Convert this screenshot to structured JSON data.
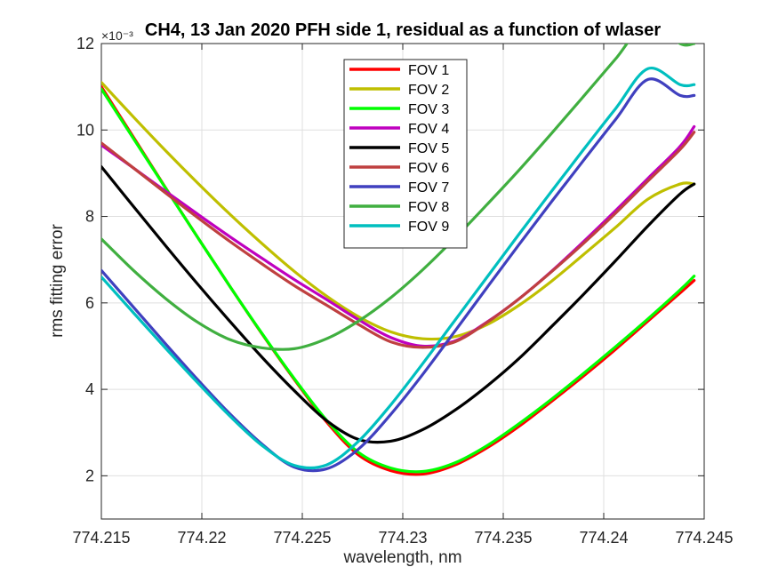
{
  "chart_data": {
    "type": "line",
    "title": "CH4, 13 Jan 2020 PFH side 1, residual as a function of wlaser",
    "xlabel": "wavelength, nm",
    "ylabel": "rms fitting error",
    "y_exponent": "×10⁻³",
    "xlim": [
      774.215,
      774.245
    ],
    "ylim": [
      1,
      12
    ],
    "xticks": [
      "774.215",
      "774.22",
      "774.225",
      "774.23",
      "774.235",
      "774.24",
      "774.245"
    ],
    "yticks": [
      "2",
      "4",
      "6",
      "8",
      "10",
      "12"
    ],
    "grid": true,
    "legend_position": "top-center",
    "x": [
      774.215,
      774.2166,
      774.2182,
      774.2198,
      774.2214,
      774.223,
      774.2246,
      774.2262,
      774.2278,
      774.2294,
      774.231,
      774.2326,
      774.2342,
      774.2358,
      774.2374,
      774.239,
      774.2406,
      774.2422,
      774.2438,
      774.2445
    ],
    "series": [
      {
        "name": "FOV 1",
        "color": "#ff0000",
        "values": [
          11.0,
          9.83,
          8.66,
          7.51,
          6.38,
          5.28,
          4.23,
          3.25,
          2.48,
          2.12,
          2.04,
          2.25,
          2.65,
          3.15,
          3.72,
          4.31,
          4.93,
          5.58,
          6.23,
          6.52
        ]
      },
      {
        "name": "FOV 2",
        "color": "#bfbf00",
        "values": [
          11.1,
          10.3,
          9.52,
          8.77,
          8.05,
          7.37,
          6.73,
          6.16,
          5.68,
          5.33,
          5.17,
          5.22,
          5.5,
          5.95,
          6.5,
          7.12,
          7.75,
          8.4,
          8.75,
          8.75
        ]
      },
      {
        "name": "FOV 3",
        "color": "#00ff00",
        "values": [
          10.95,
          9.8,
          8.65,
          7.51,
          6.38,
          5.29,
          4.25,
          3.29,
          2.54,
          2.18,
          2.1,
          2.3,
          2.7,
          3.21,
          3.77,
          4.37,
          4.99,
          5.63,
          6.3,
          6.62
        ]
      },
      {
        "name": "FOV 4",
        "color": "#bf00bf",
        "values": [
          9.65,
          9.12,
          8.58,
          8.05,
          7.53,
          7.03,
          6.54,
          6.08,
          5.61,
          5.2,
          5.0,
          5.12,
          5.56,
          6.1,
          6.73,
          7.42,
          8.14,
          8.88,
          9.62,
          10.08
        ]
      },
      {
        "name": "FOV 5",
        "color": "#000000",
        "values": [
          9.15,
          8.23,
          7.32,
          6.43,
          5.57,
          4.74,
          3.97,
          3.28,
          2.84,
          2.8,
          3.07,
          3.52,
          4.08,
          4.72,
          5.45,
          6.2,
          6.98,
          7.78,
          8.52,
          8.75
        ]
      },
      {
        "name": "FOV 6",
        "color": "#bf4040",
        "values": [
          9.7,
          9.12,
          8.54,
          7.97,
          7.42,
          6.9,
          6.4,
          5.95,
          5.5,
          5.1,
          4.97,
          5.1,
          5.55,
          6.1,
          6.72,
          7.38,
          8.08,
          8.82,
          9.55,
          9.95
        ]
      },
      {
        "name": "FOV 7",
        "color": "#4040bf",
        "values": [
          6.75,
          5.9,
          5.05,
          4.22,
          3.43,
          2.73,
          2.2,
          2.16,
          2.62,
          3.42,
          4.35,
          5.35,
          6.36,
          7.36,
          8.34,
          9.3,
          10.25,
          11.17,
          10.8,
          10.8
        ]
      },
      {
        "name": "FOV 8",
        "color": "#40af40",
        "values": [
          7.48,
          6.75,
          6.1,
          5.55,
          5.15,
          4.96,
          4.94,
          5.17,
          5.58,
          6.12,
          6.77,
          7.5,
          8.28,
          9.08,
          9.92,
          10.78,
          11.65,
          12.5,
          12.0,
          12.0
        ]
      },
      {
        "name": "FOV 9",
        "color": "#00bfbf",
        "values": [
          6.6,
          5.77,
          4.95,
          4.15,
          3.38,
          2.7,
          2.24,
          2.25,
          2.8,
          3.64,
          4.6,
          5.6,
          6.6,
          7.6,
          8.58,
          9.55,
          10.5,
          11.42,
          11.05,
          11.05
        ]
      }
    ]
  }
}
